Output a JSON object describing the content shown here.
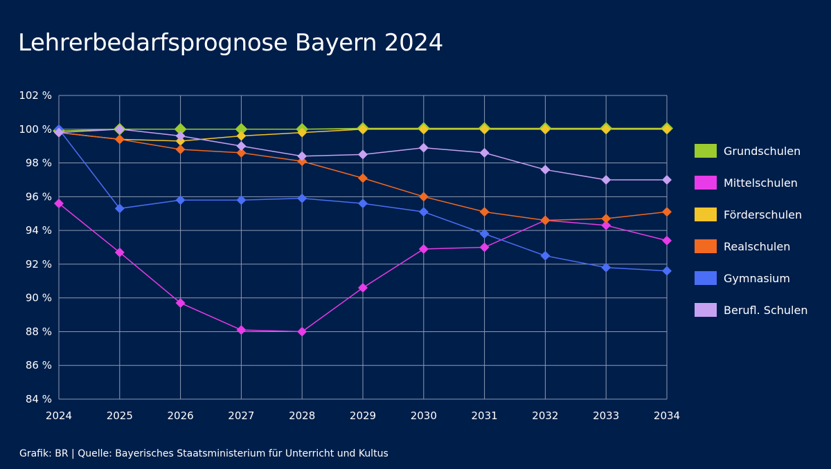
{
  "title": "Lehrerbedarfsprognose Bayern 2024",
  "source": "Grafik: BR | Quelle: Bayerisches Staatsministerium für Unterricht und Kultus",
  "chart_data": {
    "type": "line",
    "title": "Lehrerbedarfsprognose Bayern 2024",
    "xlabel": "",
    "ylabel": "",
    "x": [
      "2024",
      "2025",
      "2026",
      "2027",
      "2028",
      "2029",
      "2030",
      "2031",
      "2032",
      "2033",
      "2034"
    ],
    "ylim": [
      84,
      102
    ],
    "yticks": [
      84,
      86,
      88,
      90,
      92,
      94,
      96,
      98,
      100,
      102
    ],
    "ytick_labels": [
      "84 %",
      "86 %",
      "88 %",
      "90 %",
      "92 %",
      "94 %",
      "96 %",
      "98 %",
      "100 %",
      "102 %"
    ],
    "grid": true,
    "legend_position": "right",
    "series": [
      {
        "name": "Grundschulen",
        "color": "#9BCB2E",
        "values": [
          99.9,
          100.0,
          100.0,
          100.0,
          100.0,
          100.05,
          100.05,
          100.05,
          100.05,
          100.05,
          100.05
        ]
      },
      {
        "name": "Mittelschulen",
        "color": "#E83CE8",
        "values": [
          95.6,
          92.7,
          89.7,
          88.1,
          88.0,
          90.6,
          92.9,
          93.0,
          94.6,
          94.3,
          93.4
        ]
      },
      {
        "name": "Förderschulen",
        "color": "#F2C62A",
        "values": [
          99.8,
          99.4,
          99.3,
          99.6,
          99.8,
          100.0,
          100.0,
          100.0,
          100.0,
          100.0,
          100.0
        ]
      },
      {
        "name": "Realschulen",
        "color": "#F26A21",
        "values": [
          99.8,
          99.4,
          98.8,
          98.6,
          98.1,
          97.1,
          96.0,
          95.1,
          94.6,
          94.7,
          95.1
        ]
      },
      {
        "name": "Gymnasium",
        "color": "#4A6EF5",
        "values": [
          100.0,
          95.3,
          95.8,
          95.8,
          95.9,
          95.6,
          95.1,
          93.8,
          92.5,
          91.8,
          91.6
        ]
      },
      {
        "name": "Berufl. Schulen",
        "color": "#C8A2F2",
        "values": [
          99.8,
          100.0,
          99.6,
          99.0,
          98.4,
          98.5,
          98.9,
          98.6,
          97.6,
          97.0,
          97.0
        ]
      }
    ]
  }
}
